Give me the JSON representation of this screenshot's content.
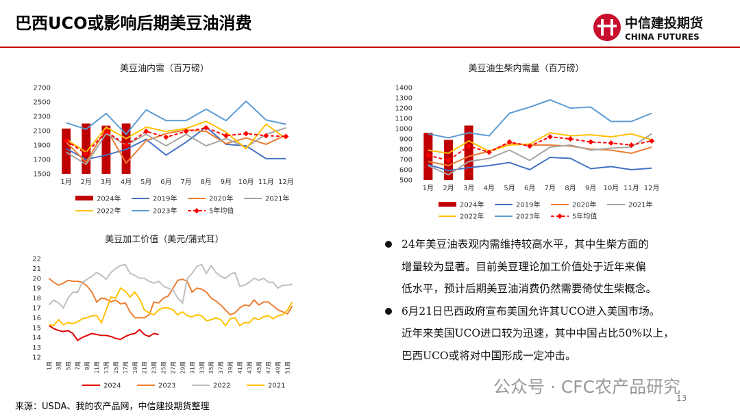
{
  "header": {
    "title": "巴西UCO或影响后期美豆油消费",
    "logo_cn": "中信建投期货",
    "logo_en": "CHINA FUTURES"
  },
  "chart_data": [
    {
      "type": "combo",
      "title": "美豆油内需（百万磅）",
      "categories": [
        "1月",
        "2月",
        "3月",
        "4月",
        "5月",
        "6月",
        "7月",
        "8月",
        "9月",
        "10月",
        "11月",
        "12月"
      ],
      "ylim": [
        1500,
        2700
      ],
      "yticks": [
        1500,
        1700,
        1900,
        2100,
        2300,
        2500,
        2700
      ],
      "grid": false,
      "series": [
        {
          "name": "2024年",
          "kind": "bar",
          "color": "#c00000",
          "values": [
            2130,
            2200,
            2170,
            2200,
            null,
            null,
            null,
            null,
            null,
            null,
            null,
            null
          ]
        },
        {
          "name": "2019年",
          "kind": "line",
          "color": "#4472c4",
          "values": [
            1850,
            1700,
            1760,
            1840,
            1980,
            1760,
            1940,
            2150,
            1910,
            1890,
            1710,
            1710
          ]
        },
        {
          "name": "2020年",
          "kind": "line",
          "color": "#ed7d31",
          "values": [
            1940,
            1660,
            2130,
            1650,
            1960,
            2060,
            2110,
            2090,
            1920,
            2000,
            1910,
            2040
          ]
        },
        {
          "name": "2021年",
          "kind": "line",
          "color": "#a5a5a5",
          "values": [
            1800,
            1630,
            2060,
            1900,
            2050,
            1890,
            2050,
            1890,
            1990,
            1870,
            2050,
            2140
          ]
        },
        {
          "name": "2022年",
          "kind": "line",
          "color": "#ffc000",
          "values": [
            1980,
            1800,
            2150,
            1990,
            2150,
            2090,
            2130,
            2230,
            2080,
            1850,
            2190,
            1990
          ]
        },
        {
          "name": "2023年",
          "kind": "line",
          "color": "#5b9bd5",
          "values": [
            2210,
            2120,
            2340,
            2050,
            2390,
            2240,
            2240,
            2400,
            2240,
            2510,
            2250,
            2190
          ]
        },
        {
          "name": "5年均值",
          "kind": "line",
          "dashed": true,
          "marker": "diamond",
          "color": "#ff0000",
          "values": [
            1960,
            1780,
            2090,
            1900,
            2090,
            2010,
            2090,
            2140,
            2030,
            2060,
            2030,
            2020
          ]
        }
      ]
    },
    {
      "type": "combo",
      "title": "美豆油生柴内需量（百万磅）",
      "categories": [
        "1月",
        "2月",
        "3月",
        "4月",
        "5月",
        "6月",
        "7月",
        "8月",
        "9月",
        "10月",
        "11月",
        "12月"
      ],
      "ylim": [
        500,
        1400
      ],
      "yticks": [
        500,
        600,
        700,
        800,
        900,
        1000,
        1100,
        1200,
        1300,
        1400
      ],
      "grid": false,
      "series": [
        {
          "name": "2024年",
          "kind": "bar",
          "color": "#c00000",
          "values": [
            960,
            890,
            1030,
            null,
            null,
            null,
            null,
            null,
            null,
            null,
            null,
            null
          ]
        },
        {
          "name": "2019年",
          "kind": "line",
          "color": "#4472c4",
          "values": [
            650,
            590,
            620,
            640,
            670,
            600,
            720,
            710,
            610,
            630,
            600,
            615
          ]
        },
        {
          "name": "2020年",
          "kind": "line",
          "color": "#ed7d31",
          "values": [
            680,
            640,
            730,
            780,
            860,
            840,
            840,
            830,
            800,
            790,
            760,
            820
          ]
        },
        {
          "name": "2021年",
          "kind": "line",
          "color": "#a5a5a5",
          "values": [
            640,
            550,
            680,
            710,
            790,
            690,
            820,
            840,
            790,
            810,
            820,
            950
          ]
        },
        {
          "name": "2022年",
          "kind": "line",
          "color": "#ffc000",
          "values": [
            790,
            760,
            880,
            780,
            840,
            850,
            960,
            930,
            940,
            920,
            950,
            890
          ]
        },
        {
          "name": "2023年",
          "kind": "line",
          "color": "#5b9bd5",
          "values": [
            950,
            910,
            960,
            930,
            1150,
            1210,
            1280,
            1200,
            1210,
            1070,
            1070,
            1150
          ]
        },
        {
          "name": "5年均值",
          "kind": "line",
          "dashed": true,
          "marker": "diamond",
          "color": "#ff0000",
          "values": [
            740,
            690,
            830,
            770,
            870,
            830,
            920,
            900,
            870,
            860,
            840,
            880
          ]
        }
      ]
    },
    {
      "type": "line",
      "title": "美豆加工价值（美元/蒲式耳）",
      "categories": [
        "1周",
        null,
        "3周",
        null,
        "5周",
        null,
        "7周",
        null,
        "9周",
        null,
        "11周",
        null,
        "13周",
        null,
        "15周",
        null,
        "17周",
        null,
        "19周",
        null,
        "21周",
        null,
        "23周",
        null,
        "25周",
        null,
        "27周",
        null,
        "29周",
        null,
        "31周",
        null,
        "33周",
        null,
        "35周",
        null,
        "37周",
        null,
        "39周",
        null,
        "41周",
        null,
        "43周",
        null,
        "45周",
        null,
        "47周",
        null,
        "49周",
        null,
        "51周",
        null
      ],
      "ylim": [
        12,
        22
      ],
      "yticks": [
        12,
        13,
        14,
        15,
        16,
        17,
        18,
        19,
        20,
        21,
        22
      ],
      "grid": false,
      "series": [
        {
          "name": "2024",
          "kind": "line",
          "color": "#e00000",
          "values": [
            15.2,
            14.9,
            14.7,
            14.6,
            14.7,
            14.4,
            13.7,
            14.0,
            14.2,
            14.4,
            14.3,
            14.2,
            14.2,
            14.1,
            13.9,
            13.8,
            14.1,
            14.3,
            14.4,
            14.8,
            14.3,
            14.1,
            14.4,
            14.3,
            null,
            null,
            null,
            null,
            null,
            null,
            null,
            null,
            null,
            null,
            null,
            null,
            null,
            null,
            null,
            null,
            null,
            null,
            null,
            null,
            null,
            null,
            null,
            null,
            null,
            null,
            null,
            null
          ]
        },
        {
          "name": "2023",
          "kind": "line",
          "color": "#ed7d31",
          "values": [
            20.0,
            19.6,
            19.3,
            19.5,
            19.8,
            19.7,
            19.7,
            19.6,
            19.2,
            18.6,
            17.6,
            18.0,
            17.9,
            17.6,
            17.8,
            17.4,
            17.5,
            16.6,
            16.0,
            16.0,
            16.0,
            16.3,
            17.6,
            17.5,
            18.0,
            18.2,
            19.0,
            19.8,
            19.9,
            19.7,
            18.6,
            19.0,
            18.9,
            18.6,
            18.0,
            17.7,
            17.3,
            16.8,
            16.3,
            16.5,
            17.0,
            17.3,
            17.2,
            17.8,
            17.3,
            17.6,
            17.6,
            17.2,
            16.8,
            16.6,
            16.4,
            17.2
          ]
        },
        {
          "name": "2022",
          "kind": "line",
          "color": "#bfbfbf",
          "values": [
            17.3,
            17.8,
            17.5,
            17.0,
            18.0,
            18.6,
            18.6,
            19.6,
            19.9,
            20.2,
            20.6,
            20.3,
            19.9,
            20.6,
            21.0,
            21.3,
            21.4,
            20.5,
            20.3,
            20.0,
            20.0,
            19.7,
            19.5,
            19.7,
            19.2,
            19.0,
            18.8,
            18.0,
            17.5,
            20.0,
            20.5,
            21.2,
            21.4,
            20.5,
            21.3,
            20.6,
            20.2,
            20.0,
            20.4,
            20.6,
            19.2,
            19.3,
            19.6,
            20.0,
            19.8,
            20.0,
            19.6,
            19.6,
            19.0,
            19.3,
            19.3,
            19.4
          ]
        },
        {
          "name": "2021",
          "kind": "line",
          "color": "#ffc000",
          "values": [
            15.3,
            15.2,
            15.8,
            15.3,
            15.5,
            15.4,
            15.6,
            15.9,
            16.0,
            16.2,
            16.2,
            15.5,
            16.8,
            18.1,
            18.0,
            19.0,
            18.7,
            18.1,
            18.6,
            17.9,
            16.8,
            16.5,
            16.3,
            16.8,
            17.0,
            17.0,
            16.8,
            16.3,
            16.6,
            16.2,
            16.1,
            16.3,
            16.2,
            15.7,
            15.8,
            16.0,
            15.8,
            15.2,
            15.9,
            16.0,
            15.2,
            15.5,
            15.5,
            16.0,
            15.8,
            16.1,
            16.2,
            15.9,
            16.2,
            16.3,
            16.8,
            17.6
          ]
        }
      ]
    }
  ],
  "bullets": [
    [
      "24年美豆油表观内需维持较高水平，其中生柴方面的",
      "增量较为显著。目前美豆理论加工价值处于近年来偏",
      "低水平，预计后期美豆油消费仍然需要倚仗生柴概念。"
    ],
    [
      "6月21日巴西政府宣布美国允许其UCO进入美国市场。",
      "近年来美国UCO进口较为迅速，其中中国占比50%以上，",
      "巴西UCO或将对中国形成一定冲击。"
    ]
  ],
  "source": "来源：USDA、我的农产品网，中信建投期货整理",
  "watermark": "公众号 · CFC农产品研究",
  "page_number": "13"
}
